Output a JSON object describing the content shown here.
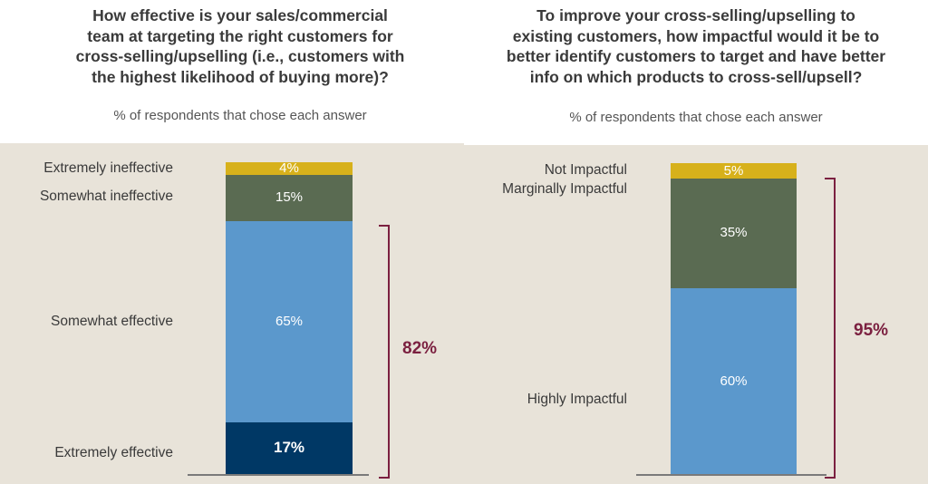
{
  "chart_data": [
    {
      "type": "bar",
      "title": "How effective is your sales/commercial team at targeting the right customers for cross-selling/upselling (i.e., customers with the highest likelihood of buying more)?",
      "title_lines": [
        "How effective is your sales/commercial",
        "team at targeting the right customers for",
        "cross-selling/upselling (i.e., customers with",
        "the highest likelihood of buying more)?"
      ],
      "subtitle": "% of respondents that chose each answer",
      "categories": [
        "Extremely effective",
        "Somewhat effective",
        "Somewhat ineffective",
        "Extremely ineffective"
      ],
      "values": [
        17,
        65,
        15,
        4
      ],
      "value_labels": [
        "17%",
        "65%",
        "15%",
        "4%"
      ],
      "colors": [
        "#003865",
        "#5b98cc",
        "#5a6b52",
        "#d7b11b"
      ],
      "bracket": {
        "label": "82%",
        "covers": [
          "Extremely effective",
          "Somewhat effective"
        ]
      }
    },
    {
      "type": "bar",
      "title": "To improve your cross-selling/upselling to existing customers, how impactful would it be to better identify customers to target and have better info on which  products to cross-sell/upsell?",
      "title_lines": [
        "To improve your cross-selling/upselling to",
        "existing customers, how impactful would it be to",
        "better identify customers to target and have better",
        "info on which  products to cross-sell/upsell?"
      ],
      "subtitle": "% of respondents that chose each answer",
      "categories": [
        "Highly Impactful",
        "Marginally Impactful",
        "Not Impactful"
      ],
      "values": [
        60,
        35,
        5
      ],
      "value_labels": [
        "60%",
        "35%",
        "5%"
      ],
      "colors": [
        "#5b98cc",
        "#5a6b52",
        "#d7b11b"
      ],
      "bracket": {
        "label": "95%",
        "covers": [
          "Highly Impactful",
          "Marginally Impactful"
        ]
      }
    }
  ]
}
